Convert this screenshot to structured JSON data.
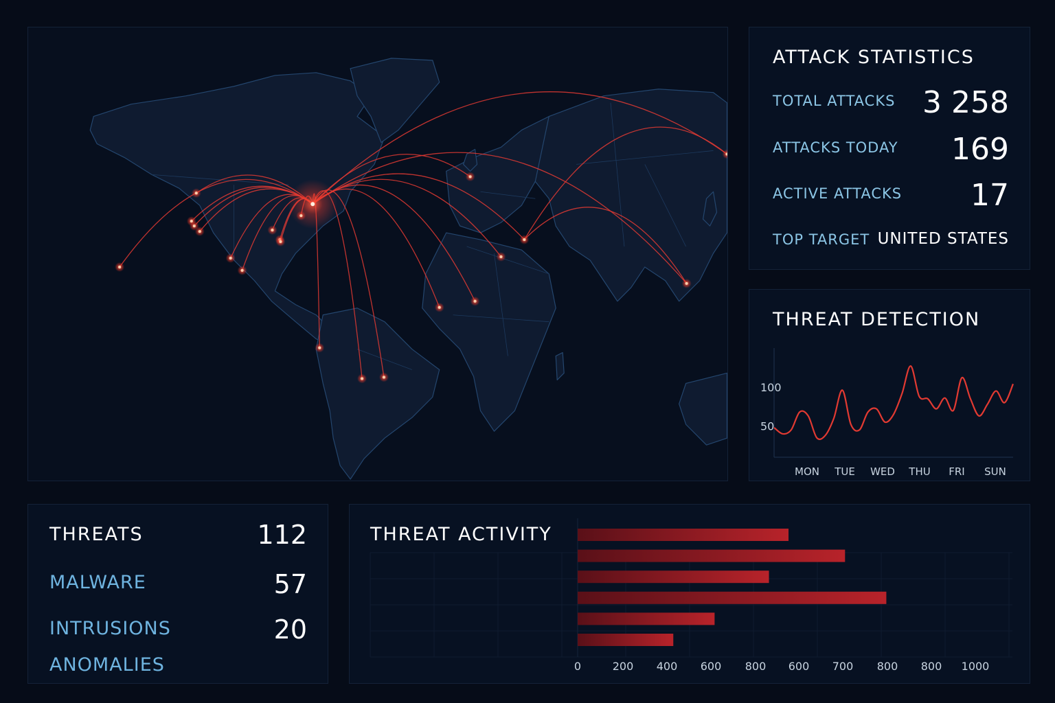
{
  "attack_statistics": {
    "title": "ATTACK STATISTICS",
    "rows": [
      {
        "label": "TOTAL ATTACKS",
        "value": "3 258"
      },
      {
        "label": "ATTACKS TODAY",
        "value": "169"
      },
      {
        "label": "ACTIVE ATTACKS",
        "value": "17"
      },
      {
        "label": "TOP TARGET",
        "value": "UNITED STATES"
      }
    ]
  },
  "threat_detection": {
    "title": "THREAT DETECTION"
  },
  "threats": {
    "title": "THREATS",
    "total": "112",
    "items": [
      {
        "label": "MALWARE",
        "value": "57"
      },
      {
        "label": "INTRUSIONS",
        "value": "20"
      },
      {
        "label": "ANOMALIES",
        "value": ""
      }
    ]
  },
  "threat_activity": {
    "title": "THREAT ACTIVITY"
  },
  "colors": {
    "accent_red": "#e23a32",
    "label_blue": "#8cc6e6",
    "background": "#060c18",
    "panel": "#071122"
  },
  "chart_data": [
    {
      "type": "line",
      "title": "THREAT DETECTION",
      "categories": [
        "MON",
        "TUE",
        "WED",
        "THU",
        "FRI",
        "SUN"
      ],
      "y_ticks": [
        "100",
        "50"
      ],
      "ylim": [
        10,
        150
      ],
      "series": [
        {
          "x": [
            0,
            0.2,
            0.4,
            0.6,
            0.8,
            1.0,
            1.2,
            1.4,
            1.6,
            1.8,
            2.0,
            2.2,
            2.4,
            2.6,
            2.8,
            3.0,
            3.2,
            3.4,
            3.6,
            3.8,
            4.0,
            4.2,
            4.4,
            4.6,
            4.8,
            5.0,
            5.2,
            5.4,
            5.6
          ],
          "values": [
            48,
            40,
            45,
            68,
            63,
            35,
            38,
            60,
            96,
            52,
            45,
            68,
            72,
            55,
            65,
            92,
            127,
            88,
            85,
            72,
            86,
            70,
            112,
            85,
            63,
            78,
            95,
            80,
            104
          ]
        }
      ]
    },
    {
      "type": "bar",
      "title": "THREAT ACTIVITY",
      "orientation": "horizontal",
      "x_ticks": [
        "0",
        "200",
        "400",
        "600",
        "800",
        "600",
        "700",
        "800",
        "800",
        "1000"
      ],
      "xlim": [
        0,
        1000
      ],
      "values": [
        485,
        615,
        440,
        710,
        315,
        220
      ]
    }
  ]
}
